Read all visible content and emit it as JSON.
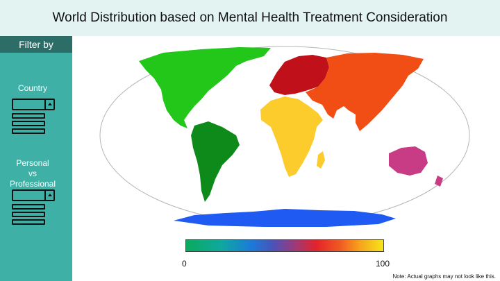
{
  "title": "World Distribution based on Mental Health Treatment Consideration",
  "sidebar": {
    "heading": "Filter by",
    "filters": [
      {
        "label": "Country"
      },
      {
        "label_lines": [
          "Personal",
          "vs",
          "Professional"
        ]
      }
    ]
  },
  "map": {
    "regions": [
      {
        "name": "North America",
        "color": "#22c71a"
      },
      {
        "name": "South America",
        "color": "#0e8a1a"
      },
      {
        "name": "Europe",
        "color": "#c0101a"
      },
      {
        "name": "Asia",
        "color": "#f04e14"
      },
      {
        "name": "Africa",
        "color": "#fccb2c"
      },
      {
        "name": "Oceania",
        "color": "#c83c86"
      },
      {
        "name": "Antarctica",
        "color": "#1f5bf2"
      }
    ]
  },
  "scale": {
    "min": "0",
    "max": "100"
  },
  "note": "Note: Actual graphs may not look like this."
}
